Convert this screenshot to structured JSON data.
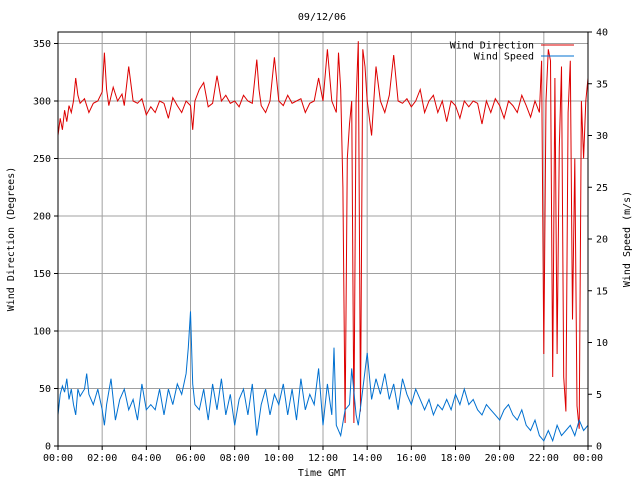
{
  "chart_data": {
    "type": "line",
    "title": "09/12/06",
    "xlabel": "Time GMT",
    "ylabel_left": "Wind Direction (Degrees)",
    "ylabel_right": "Wind Speed (m/s)",
    "x_ticks": [
      "00:00",
      "02:00",
      "04:00",
      "06:00",
      "08:00",
      "10:00",
      "12:00",
      "14:00",
      "16:00",
      "18:00",
      "20:00",
      "22:00",
      "00:00"
    ],
    "y_left_ticks": [
      0,
      50,
      100,
      150,
      200,
      250,
      300,
      350
    ],
    "y_right_ticks": [
      0,
      5,
      10,
      15,
      20,
      25,
      30,
      35,
      40
    ],
    "xlim_hours": [
      0,
      24
    ],
    "ylim_left": [
      0,
      360
    ],
    "ylim_right": [
      0,
      40
    ],
    "grid": true,
    "legend_position": "top-right",
    "series": [
      {
        "name": "Wind Direction",
        "axis": "left",
        "color": "#dd0000",
        "points": [
          [
            0.0,
            270
          ],
          [
            0.1,
            285
          ],
          [
            0.2,
            275
          ],
          [
            0.3,
            292
          ],
          [
            0.4,
            282
          ],
          [
            0.5,
            296
          ],
          [
            0.6,
            290
          ],
          [
            0.7,
            300
          ],
          [
            0.8,
            320
          ],
          [
            0.9,
            305
          ],
          [
            1.0,
            298
          ],
          [
            1.2,
            302
          ],
          [
            1.4,
            290
          ],
          [
            1.6,
            298
          ],
          [
            1.8,
            300
          ],
          [
            2.0,
            308
          ],
          [
            2.1,
            342
          ],
          [
            2.2,
            310
          ],
          [
            2.3,
            296
          ],
          [
            2.5,
            312
          ],
          [
            2.7,
            300
          ],
          [
            2.9,
            306
          ],
          [
            3.0,
            296
          ],
          [
            3.2,
            330
          ],
          [
            3.4,
            300
          ],
          [
            3.6,
            298
          ],
          [
            3.8,
            302
          ],
          [
            4.0,
            288
          ],
          [
            4.2,
            295
          ],
          [
            4.4,
            290
          ],
          [
            4.6,
            300
          ],
          [
            4.8,
            298
          ],
          [
            5.0,
            285
          ],
          [
            5.2,
            303
          ],
          [
            5.4,
            296
          ],
          [
            5.6,
            290
          ],
          [
            5.8,
            300
          ],
          [
            6.0,
            296
          ],
          [
            6.1,
            275
          ],
          [
            6.2,
            300
          ],
          [
            6.4,
            310
          ],
          [
            6.6,
            316
          ],
          [
            6.8,
            295
          ],
          [
            7.0,
            298
          ],
          [
            7.2,
            322
          ],
          [
            7.4,
            300
          ],
          [
            7.6,
            305
          ],
          [
            7.8,
            298
          ],
          [
            8.0,
            300
          ],
          [
            8.2,
            295
          ],
          [
            8.4,
            305
          ],
          [
            8.6,
            300
          ],
          [
            8.8,
            298
          ],
          [
            9.0,
            336
          ],
          [
            9.1,
            310
          ],
          [
            9.2,
            296
          ],
          [
            9.4,
            290
          ],
          [
            9.6,
            300
          ],
          [
            9.8,
            338
          ],
          [
            10.0,
            300
          ],
          [
            10.2,
            296
          ],
          [
            10.4,
            305
          ],
          [
            10.6,
            298
          ],
          [
            10.8,
            300
          ],
          [
            11.0,
            302
          ],
          [
            11.2,
            290
          ],
          [
            11.4,
            298
          ],
          [
            11.6,
            300
          ],
          [
            11.8,
            320
          ],
          [
            12.0,
            300
          ],
          [
            12.2,
            345
          ],
          [
            12.4,
            300
          ],
          [
            12.6,
            290
          ],
          [
            12.7,
            342
          ],
          [
            12.8,
            310
          ],
          [
            12.9,
            225
          ],
          [
            13.0,
            20
          ],
          [
            13.1,
            250
          ],
          [
            13.2,
            280
          ],
          [
            13.3,
            300
          ],
          [
            13.4,
            20
          ],
          [
            13.5,
            300
          ],
          [
            13.6,
            352
          ],
          [
            13.7,
            30
          ],
          [
            13.8,
            345
          ],
          [
            13.9,
            330
          ],
          [
            14.0,
            300
          ],
          [
            14.2,
            270
          ],
          [
            14.4,
            330
          ],
          [
            14.6,
            300
          ],
          [
            14.8,
            290
          ],
          [
            15.0,
            305
          ],
          [
            15.2,
            340
          ],
          [
            15.4,
            300
          ],
          [
            15.6,
            298
          ],
          [
            15.8,
            302
          ],
          [
            16.0,
            295
          ],
          [
            16.2,
            300
          ],
          [
            16.4,
            310
          ],
          [
            16.6,
            290
          ],
          [
            16.8,
            300
          ],
          [
            17.0,
            305
          ],
          [
            17.2,
            290
          ],
          [
            17.4,
            300
          ],
          [
            17.6,
            282
          ],
          [
            17.8,
            300
          ],
          [
            18.0,
            296
          ],
          [
            18.2,
            285
          ],
          [
            18.4,
            300
          ],
          [
            18.6,
            295
          ],
          [
            18.8,
            300
          ],
          [
            19.0,
            298
          ],
          [
            19.2,
            280
          ],
          [
            19.4,
            300
          ],
          [
            19.6,
            290
          ],
          [
            19.8,
            302
          ],
          [
            20.0,
            296
          ],
          [
            20.2,
            285
          ],
          [
            20.4,
            300
          ],
          [
            20.6,
            296
          ],
          [
            20.8,
            290
          ],
          [
            21.0,
            305
          ],
          [
            21.2,
            296
          ],
          [
            21.4,
            286
          ],
          [
            21.6,
            300
          ],
          [
            21.8,
            290
          ],
          [
            21.9,
            335
          ],
          [
            22.0,
            80
          ],
          [
            22.1,
            300
          ],
          [
            22.2,
            345
          ],
          [
            22.3,
            335
          ],
          [
            22.4,
            60
          ],
          [
            22.5,
            320
          ],
          [
            22.6,
            80
          ],
          [
            22.7,
            260
          ],
          [
            22.8,
            330
          ],
          [
            22.9,
            60
          ],
          [
            23.0,
            30
          ],
          [
            23.1,
            290
          ],
          [
            23.2,
            335
          ],
          [
            23.3,
            110
          ],
          [
            23.4,
            250
          ],
          [
            23.5,
            35
          ],
          [
            23.6,
            15
          ],
          [
            23.7,
            300
          ],
          [
            23.8,
            250
          ],
          [
            23.9,
            300
          ],
          [
            24.0,
            320
          ]
        ]
      },
      {
        "name": "Wind Speed",
        "axis": "right",
        "color": "#0070d0",
        "points": [
          [
            0.0,
            3.0
          ],
          [
            0.1,
            5.0
          ],
          [
            0.2,
            5.8
          ],
          [
            0.3,
            5.2
          ],
          [
            0.4,
            6.5
          ],
          [
            0.5,
            4.5
          ],
          [
            0.6,
            5.5
          ],
          [
            0.7,
            4.0
          ],
          [
            0.8,
            3.0
          ],
          [
            0.9,
            5.5
          ],
          [
            1.0,
            4.8
          ],
          [
            1.2,
            5.5
          ],
          [
            1.3,
            7.0
          ],
          [
            1.4,
            5.0
          ],
          [
            1.6,
            4.0
          ],
          [
            1.8,
            5.5
          ],
          [
            2.0,
            3.5
          ],
          [
            2.1,
            2.0
          ],
          [
            2.2,
            4.0
          ],
          [
            2.4,
            6.5
          ],
          [
            2.6,
            2.5
          ],
          [
            2.8,
            4.5
          ],
          [
            3.0,
            5.5
          ],
          [
            3.2,
            3.5
          ],
          [
            3.4,
            4.5
          ],
          [
            3.6,
            2.5
          ],
          [
            3.8,
            6.0
          ],
          [
            4.0,
            3.5
          ],
          [
            4.2,
            4.0
          ],
          [
            4.4,
            3.5
          ],
          [
            4.6,
            5.5
          ],
          [
            4.8,
            3.0
          ],
          [
            5.0,
            5.5
          ],
          [
            5.2,
            4.0
          ],
          [
            5.4,
            6.0
          ],
          [
            5.6,
            5.0
          ],
          [
            5.8,
            7.0
          ],
          [
            5.9,
            9.5
          ],
          [
            6.0,
            13.0
          ],
          [
            6.1,
            6.0
          ],
          [
            6.2,
            4.0
          ],
          [
            6.4,
            3.5
          ],
          [
            6.6,
            5.5
          ],
          [
            6.8,
            2.5
          ],
          [
            7.0,
            6.0
          ],
          [
            7.2,
            3.5
          ],
          [
            7.4,
            6.5
          ],
          [
            7.6,
            3.0
          ],
          [
            7.8,
            5.0
          ],
          [
            8.0,
            2.0
          ],
          [
            8.2,
            4.5
          ],
          [
            8.4,
            5.5
          ],
          [
            8.6,
            3.0
          ],
          [
            8.8,
            6.0
          ],
          [
            9.0,
            1.0
          ],
          [
            9.2,
            4.0
          ],
          [
            9.4,
            5.5
          ],
          [
            9.6,
            3.0
          ],
          [
            9.8,
            5.0
          ],
          [
            10.0,
            4.0
          ],
          [
            10.2,
            6.0
          ],
          [
            10.4,
            3.0
          ],
          [
            10.6,
            5.5
          ],
          [
            10.8,
            2.5
          ],
          [
            11.0,
            6.5
          ],
          [
            11.2,
            3.5
          ],
          [
            11.4,
            5.0
          ],
          [
            11.6,
            4.0
          ],
          [
            11.8,
            7.5
          ],
          [
            12.0,
            2.0
          ],
          [
            12.2,
            6.0
          ],
          [
            12.4,
            3.0
          ],
          [
            12.5,
            9.5
          ],
          [
            12.6,
            2.0
          ],
          [
            12.8,
            1.0
          ],
          [
            13.0,
            3.5
          ],
          [
            13.2,
            4.0
          ],
          [
            13.3,
            7.5
          ],
          [
            13.5,
            3.0
          ],
          [
            13.6,
            2.0
          ],
          [
            13.8,
            5.5
          ],
          [
            14.0,
            9.0
          ],
          [
            14.2,
            4.5
          ],
          [
            14.4,
            6.5
          ],
          [
            14.6,
            5.0
          ],
          [
            14.8,
            7.0
          ],
          [
            15.0,
            4.5
          ],
          [
            15.2,
            6.0
          ],
          [
            15.4,
            3.5
          ],
          [
            15.6,
            6.5
          ],
          [
            15.8,
            5.0
          ],
          [
            16.0,
            4.0
          ],
          [
            16.2,
            5.5
          ],
          [
            16.4,
            4.5
          ],
          [
            16.6,
            3.5
          ],
          [
            16.8,
            4.5
          ],
          [
            17.0,
            3.0
          ],
          [
            17.2,
            4.0
          ],
          [
            17.4,
            3.5
          ],
          [
            17.6,
            4.5
          ],
          [
            17.8,
            3.5
          ],
          [
            18.0,
            5.0
          ],
          [
            18.2,
            4.0
          ],
          [
            18.4,
            5.5
          ],
          [
            18.6,
            4.0
          ],
          [
            18.8,
            4.5
          ],
          [
            19.0,
            3.5
          ],
          [
            19.2,
            3.0
          ],
          [
            19.4,
            4.0
          ],
          [
            19.6,
            3.5
          ],
          [
            19.8,
            3.0
          ],
          [
            20.0,
            2.5
          ],
          [
            20.2,
            3.5
          ],
          [
            20.4,
            4.0
          ],
          [
            20.6,
            3.0
          ],
          [
            20.8,
            2.5
          ],
          [
            21.0,
            3.5
          ],
          [
            21.2,
            2.0
          ],
          [
            21.4,
            1.5
          ],
          [
            21.6,
            2.5
          ],
          [
            21.8,
            1.0
          ],
          [
            22.0,
            0.5
          ],
          [
            22.2,
            1.5
          ],
          [
            22.4,
            0.5
          ],
          [
            22.6,
            2.0
          ],
          [
            22.8,
            1.0
          ],
          [
            23.0,
            1.5
          ],
          [
            23.2,
            2.0
          ],
          [
            23.4,
            1.0
          ],
          [
            23.6,
            2.5
          ],
          [
            23.8,
            1.5
          ],
          [
            24.0,
            2.0
          ]
        ]
      }
    ]
  }
}
